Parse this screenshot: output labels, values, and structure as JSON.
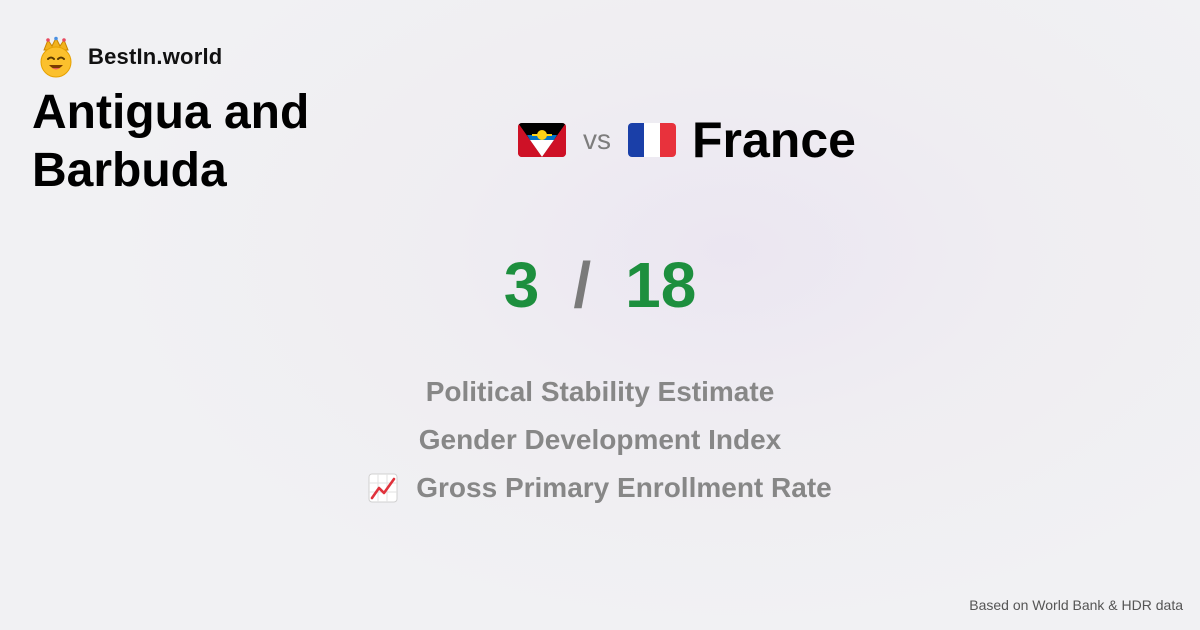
{
  "brand": {
    "name": "BestIn.world",
    "logo_icon": "crowned-smiley-icon"
  },
  "comparison": {
    "left_country": "Antigua and Barbuda",
    "left_flag_icon": "antigua-and-barbuda-flag-icon",
    "vs_label": "vs",
    "right_country": "France",
    "right_flag_icon": "france-flag-icon"
  },
  "score": {
    "left": "3",
    "separator": "/",
    "right": "18"
  },
  "metrics": [
    {
      "label": "Political Stability Estimate"
    },
    {
      "label": "Gender Development Index"
    },
    {
      "label": "Gross Primary Enrollment Rate",
      "icon": "chart-increasing-icon"
    }
  ],
  "footer": {
    "source": "Based on World Bank & HDR data"
  },
  "colors": {
    "score_green": "#1d8f3e",
    "muted_gray": "#878787"
  }
}
